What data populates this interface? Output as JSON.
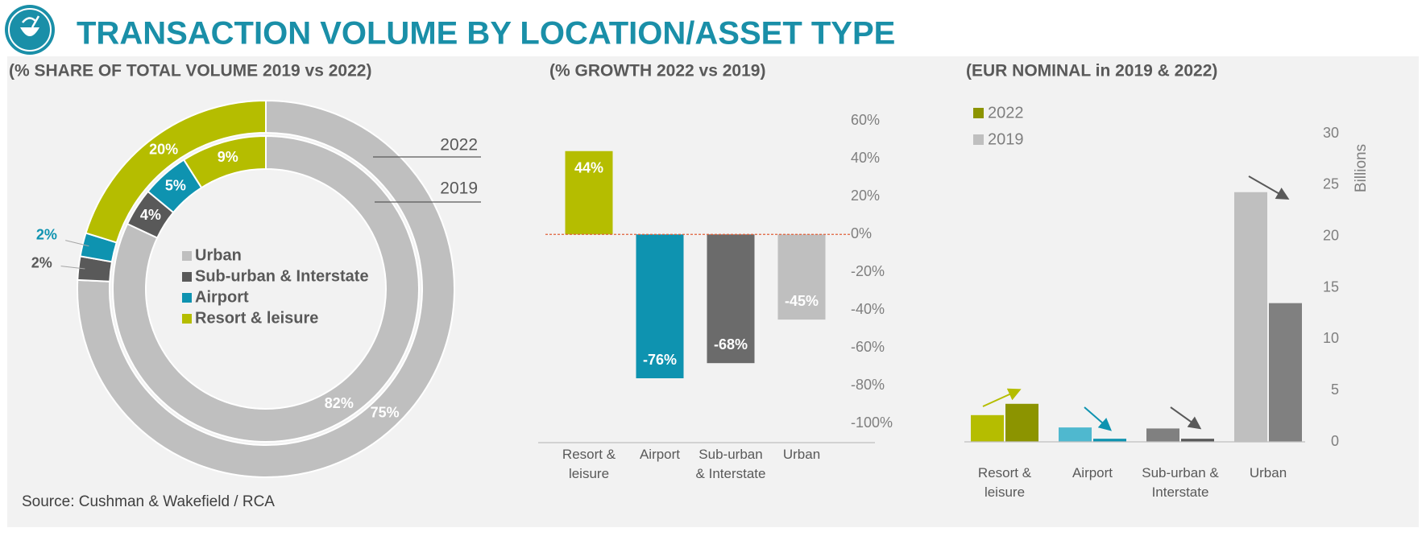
{
  "title": "TRANSACTION VOLUME BY LOCATION/ASSET TYPE",
  "source": "Source: Cushman & Wakefield / RCA",
  "chart_data": [
    {
      "type": "donut",
      "title": "(% SHARE OF TOTAL VOLUME 2019 vs 2022)",
      "categories": [
        "Urban",
        "Sub-urban & Interstate",
        "Airport",
        "Resort & leisure"
      ],
      "colors": [
        "#bfbfbf",
        "#595959",
        "#0e93b0",
        "#b5bd00"
      ],
      "series": [
        {
          "name": "2022",
          "values": [
            75,
            2,
            2,
            20
          ],
          "value_labels": [
            "75%",
            "2%",
            "2%",
            "20%"
          ]
        },
        {
          "name": "2019",
          "values": [
            82,
            4,
            5,
            9
          ],
          "value_labels": [
            "82%",
            "4%",
            "5%",
            "9%"
          ]
        }
      ]
    },
    {
      "type": "bar",
      "title": "(% GROWTH 2022 vs 2019)",
      "categories": [
        "Resort & leisure",
        "Airport",
        "Sub-urban & Interstate",
        "Urban"
      ],
      "values": [
        44,
        -76,
        -68,
        -45
      ],
      "value_labels": [
        "44%",
        "-76%",
        "-68%",
        "-45%"
      ],
      "colors": [
        "#b5bd00",
        "#0e93b0",
        "#6b6b6b",
        "#bfbfbf"
      ],
      "ylim": [
        -110,
        66
      ],
      "yticks": [
        {
          "value": 60,
          "label": "60%"
        },
        {
          "value": 40,
          "label": "40%"
        },
        {
          "value": 20,
          "label": "20%"
        },
        {
          "value": 0,
          "label": "0%"
        },
        {
          "value": -20,
          "label": "-20%"
        },
        {
          "value": -40,
          "label": "-40%"
        },
        {
          "value": -60,
          "label": "-60%"
        },
        {
          "value": -80,
          "label": "-80%"
        },
        {
          "value": -100,
          "label": "-100%"
        }
      ]
    },
    {
      "type": "grouped_bar",
      "title": "(EUR NOMINAL in 2019 & 2022)",
      "y_label": "Billions",
      "categories": [
        "Resort & leisure",
        "Airport",
        "Sub-urban & Interstate",
        "Urban"
      ],
      "series": [
        {
          "name": "2022",
          "color": "#8c9400",
          "colors": [
            "#8c9400",
            "#0e93b0",
            "#595959",
            "#808080"
          ],
          "values": [
            3.7,
            0.3,
            0.3,
            13.5
          ]
        },
        {
          "name": "2019",
          "color": "#bfbfbf",
          "colors": [
            "#b5bd00",
            "#4fb8cf",
            "#808080",
            "#bfbfbf"
          ],
          "values": [
            2.6,
            1.4,
            1.3,
            24.3
          ]
        }
      ],
      "ylim": [
        0,
        30
      ],
      "yticks": [
        0,
        5,
        10,
        15,
        20,
        25,
        30
      ]
    }
  ]
}
